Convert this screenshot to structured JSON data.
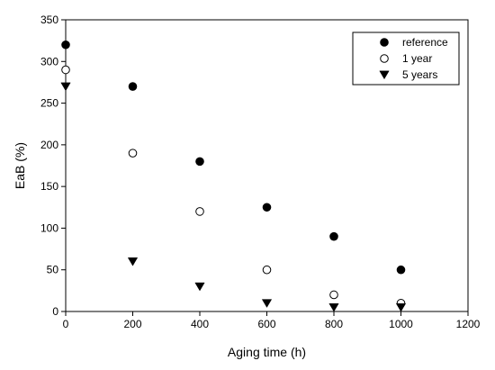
{
  "chart_data": {
    "type": "scatter",
    "title": "",
    "xlabel": "Aging time (h)",
    "ylabel": "EaB (%)",
    "xlim": [
      0,
      1200
    ],
    "ylim": [
      0,
      350
    ],
    "xticks": [
      0,
      200,
      400,
      600,
      800,
      1000,
      1200
    ],
    "yticks": [
      0,
      50,
      100,
      150,
      200,
      250,
      300,
      350
    ],
    "grid": false,
    "legend_position": "top-right",
    "series": [
      {
        "name": "reference",
        "marker": "filled-circle",
        "color": "#000000",
        "x": [
          0,
          200,
          400,
          600,
          800,
          1000
        ],
        "y": [
          320,
          270,
          180,
          125,
          90,
          50
        ]
      },
      {
        "name": "1 year",
        "marker": "open-circle",
        "color": "#000000",
        "x": [
          0,
          200,
          400,
          600,
          800,
          1000
        ],
        "y": [
          290,
          190,
          120,
          50,
          20,
          10
        ]
      },
      {
        "name": "5 years",
        "marker": "filled-triangle-down",
        "color": "#000000",
        "x": [
          0,
          200,
          400,
          600,
          800,
          1000
        ],
        "y": [
          270,
          60,
          30,
          10,
          5,
          5
        ]
      }
    ]
  }
}
